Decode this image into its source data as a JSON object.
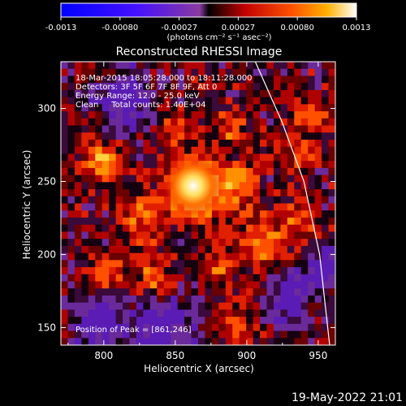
{
  "colorbar": {
    "tick_labels": [
      "-0.0013",
      "-0.00080",
      "-0.00027",
      "0.00027",
      "0.00080",
      "0.0013"
    ],
    "unit_label": "(photons cm⁻² s⁻¹ asec⁻²)"
  },
  "plot": {
    "title": "Reconstructed RHESSI Image",
    "xlabel": "Heliocentric X (arcsec)",
    "ylabel": "Heliocentric Y (arcsec)",
    "x_ticks": [
      "800",
      "850",
      "900",
      "950"
    ],
    "y_ticks": [
      "150",
      "200",
      "250",
      "300"
    ]
  },
  "annotations": {
    "time_range": "18-Mar-2015 18:05:28.000 to 18:11:28.000",
    "detectors": "Detectors: 3F 5F 6F 7F 8F 9F, Att 0",
    "energy": "Energy Range: 12.0 - 25.0 keV",
    "clean": "Clean     Total counts: 1.40E+04",
    "peak": "Position of Peak = [861,246]"
  },
  "footer": {
    "timestamp": "19-May-2022 21:01"
  },
  "image": {
    "x_range": [
      770,
      962
    ],
    "y_range": [
      138,
      332
    ],
    "peak_position": [
      861,
      246
    ],
    "limb_curve": [
      [
        906,
        332
      ],
      [
        925,
        290
      ],
      [
        940,
        250
      ],
      [
        951,
        200
      ],
      [
        958,
        138
      ]
    ]
  }
}
